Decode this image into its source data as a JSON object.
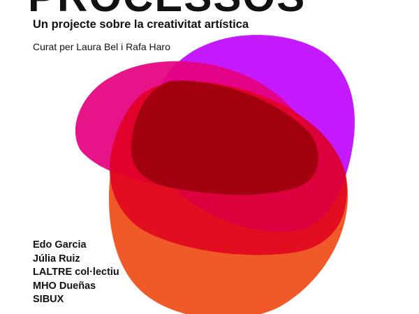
{
  "poster": {
    "title": "PROCESSOS",
    "subtitle": "Un projecte sobre la creativitat artística",
    "curators": "Curat per Laura Bel i Rafa Haro",
    "artists": [
      "Edo Garcia",
      "Júlia Ruiz",
      "LALTRE col·lectiu",
      "MHO Dueñas",
      "SIBUX"
    ]
  },
  "colors": {
    "orange": "#f05a28",
    "purple": "#bf00ff",
    "magenta": "#e5007e",
    "red": "#e1001e",
    "dark_red": "#a3000f",
    "text": "#111111"
  }
}
